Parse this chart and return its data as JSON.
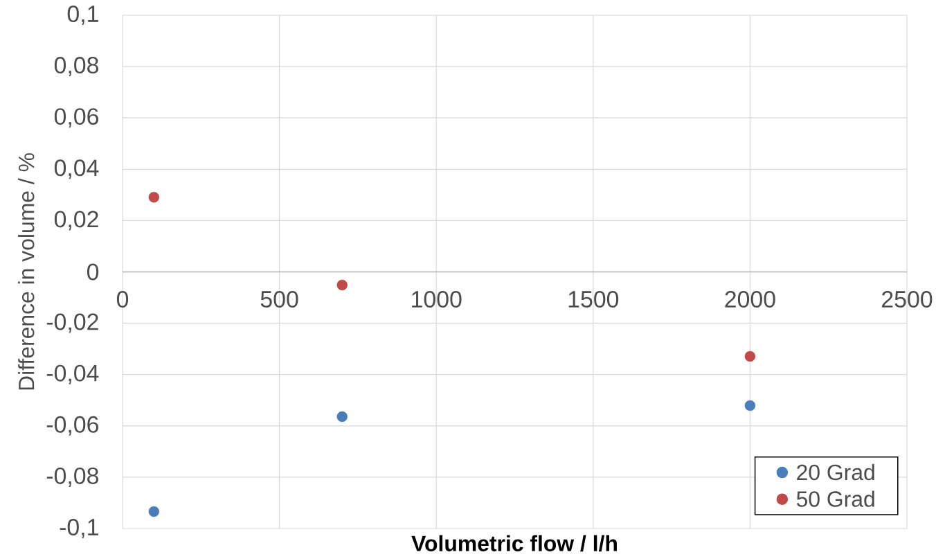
{
  "chart_data": {
    "type": "scatter",
    "xlabel": "Volumetric flow / l/h",
    "ylabel": "Difference in volume / %",
    "x": [
      100,
      700,
      2000
    ],
    "series": [
      {
        "name": "20 Grad",
        "color": "#4a7ebb",
        "values": [
          -0.0934,
          -0.0564,
          -0.0521
        ]
      },
      {
        "name": "50 Grad",
        "color": "#be4b48",
        "values": [
          0.0291,
          -0.0051,
          -0.0329
        ]
      }
    ],
    "xlim": [
      0,
      2500
    ],
    "xticks": [
      0,
      500,
      1000,
      1500,
      2000,
      2500
    ],
    "ylim": [
      -0.1,
      0.1
    ],
    "yticks": [
      {
        "value": -0.1,
        "label": "-0,1"
      },
      {
        "value": -0.08,
        "label": "-0,08"
      },
      {
        "value": -0.06,
        "label": "-0,06"
      },
      {
        "value": -0.04,
        "label": "-0,04"
      },
      {
        "value": -0.02,
        "label": "-0,02"
      },
      {
        "value": 0,
        "label": "0"
      },
      {
        "value": 0.02,
        "label": "0,02"
      },
      {
        "value": 0.04,
        "label": "0,04"
      },
      {
        "value": 0.06,
        "label": "0,06"
      },
      {
        "value": 0.08,
        "label": "0,08"
      },
      {
        "value": 0.1,
        "label": "0,1"
      }
    ],
    "grid": true,
    "legend": "bottom right",
    "marker": "circle"
  }
}
